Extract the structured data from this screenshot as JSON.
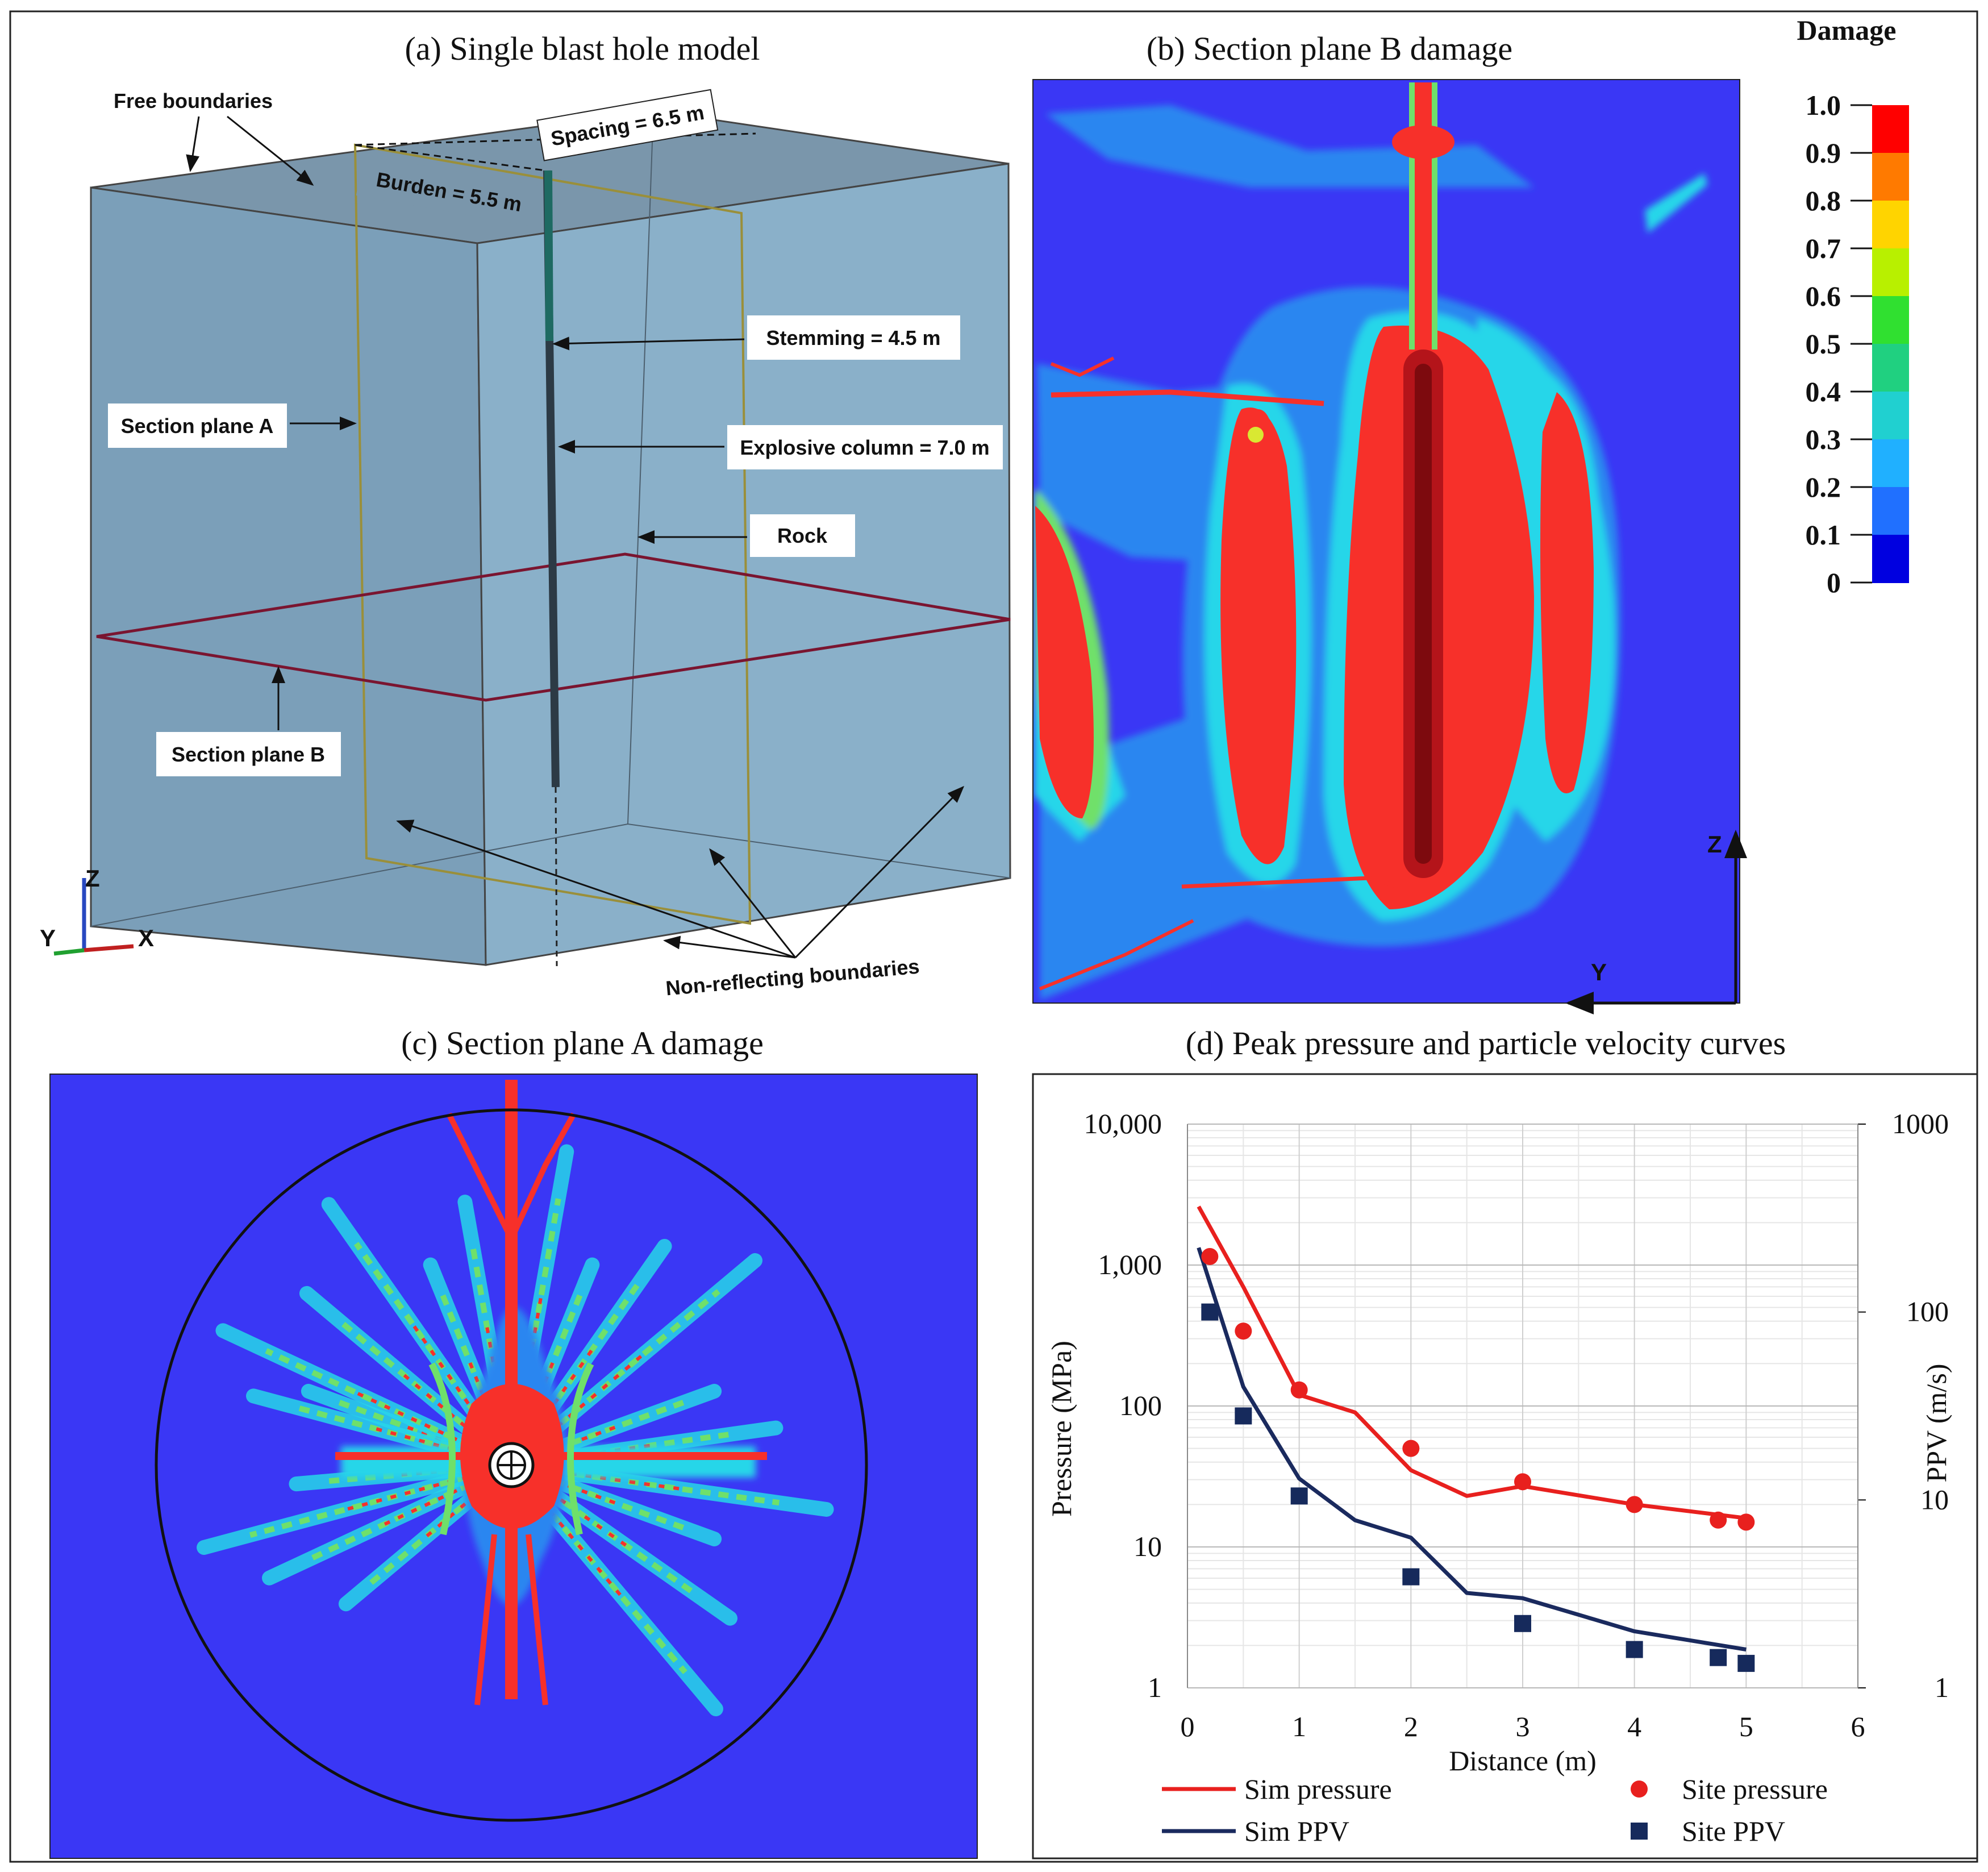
{
  "panels": {
    "a": {
      "caption": "(a)  Single blast hole model"
    },
    "b": {
      "caption": "(b)  Section plane B damage"
    },
    "c": {
      "caption": "(c)  Section plane A damage"
    },
    "d": {
      "caption": "(d)  Peak pressure and particle velocity curves"
    }
  },
  "model_labels": {
    "free_boundaries": "Free boundaries",
    "spacing": "Spacing = 6.5 m",
    "burden": "Burden = 5.5 m",
    "stemming": "Stemming = 4.5 m",
    "section_a": "Section plane A",
    "explosive": "Explosive column = 7.0 m",
    "rock": "Rock",
    "section_b": "Section plane B",
    "non_reflecting": "Non-reflecting boundaries"
  },
  "axes_triad": {
    "z": "Z",
    "y": "Y",
    "x": "X"
  },
  "section_b_axes": {
    "z": "Z",
    "y": "Y"
  },
  "colorbar": {
    "title": "Damage",
    "ticks": [
      "1.0",
      "0.9",
      "0.8",
      "0.7",
      "0.6",
      "0.5",
      "0.4",
      "0.3",
      "0.2",
      "0.1",
      "0"
    ],
    "colors": [
      "#ff0000",
      "#ff7a00",
      "#ffd400",
      "#b8f000",
      "#30e030",
      "#20d080",
      "#20d0d0",
      "#20b0ff",
      "#2070ff",
      "#0000e0"
    ]
  },
  "damage_colors": {
    "background": "#3a37f5",
    "blue": "#2a86f0",
    "cyan": "#27d6e9",
    "green": "#6fe06a",
    "yellow": "#d9e832",
    "red": "#f7302a",
    "dark_red": "#b4141a"
  },
  "chart_data": {
    "type": "line+scatter",
    "title": "Peak pressure and particle velocity curves",
    "xlabel": "Distance (m)",
    "ylabel": "Pressure (MPa)",
    "ylabel_right": "PPV (m/s)",
    "xlim": [
      0,
      6
    ],
    "ylim": [
      1,
      10000
    ],
    "ylim_right": [
      1,
      1000
    ],
    "yscale": "log",
    "x_ticks": [
      "0",
      "1",
      "2",
      "3",
      "4",
      "5",
      "6"
    ],
    "y_ticks": [
      "10,000",
      "1,000",
      "100",
      "10",
      "1"
    ],
    "y_ticks_right": [
      "1000",
      "100",
      "10",
      "1"
    ],
    "series": [
      {
        "name": "Sim pressure",
        "kind": "line",
        "axis": "left",
        "color": "#e8201e",
        "x": [
          0.1,
          0.5,
          1.0,
          1.5,
          2.0,
          2.5,
          3.0,
          4.0,
          5.0
        ],
        "y": [
          2600,
          700,
          120,
          90,
          35,
          23,
          27,
          20,
          16
        ]
      },
      {
        "name": "Sim PPV",
        "kind": "line",
        "axis": "right",
        "color": "#1a2a5e",
        "x": [
          0.1,
          0.5,
          1.0,
          1.5,
          2.0,
          2.5,
          3.0,
          4.0,
          5.0
        ],
        "y": [
          220,
          40,
          13,
          7.8,
          6.3,
          3.2,
          3.0,
          2.0,
          1.6
        ]
      },
      {
        "name": "Site pressure",
        "kind": "scatter",
        "axis": "left",
        "color": "#e8201e",
        "x": [
          0.2,
          0.5,
          1.0,
          2.0,
          3.0,
          4.0,
          4.75,
          5.0
        ],
        "y": [
          1150,
          340,
          130,
          50,
          29,
          20,
          15.5,
          15
        ]
      },
      {
        "name": "Site PPV",
        "kind": "scatter",
        "axis": "right",
        "color": "#162a5c",
        "x": [
          0.2,
          0.5,
          1.0,
          2.0,
          3.0,
          4.0,
          4.75,
          5.0
        ],
        "y": [
          100,
          28,
          10.5,
          3.9,
          2.2,
          1.6,
          1.45,
          1.35
        ]
      }
    ],
    "legend": [
      "Sim pressure",
      "Sim PPV",
      "Site pressure",
      "Site PPV"
    ]
  }
}
